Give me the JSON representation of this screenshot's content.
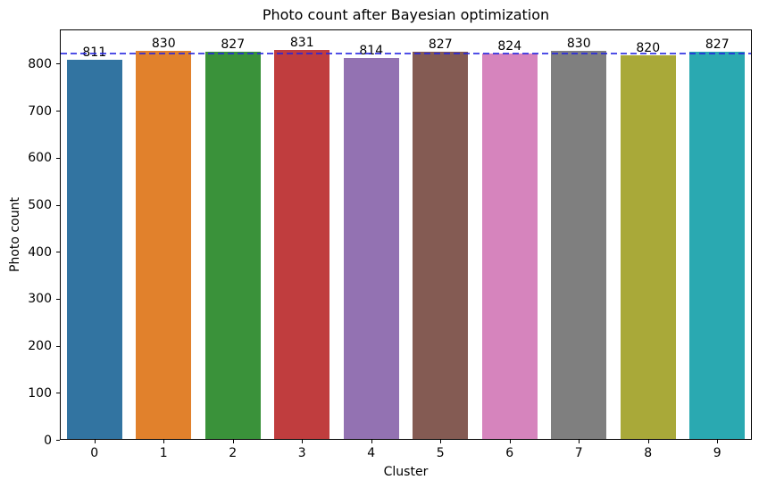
{
  "chart_data": {
    "type": "bar",
    "title": "Photo count after Bayesian optimization",
    "xlabel": "Cluster",
    "ylabel": "Photo count",
    "categories": [
      "0",
      "1",
      "2",
      "3",
      "4",
      "5",
      "6",
      "7",
      "8",
      "9"
    ],
    "values": [
      811,
      830,
      827,
      831,
      814,
      827,
      824,
      830,
      820,
      827
    ],
    "bar_labels": [
      "811",
      "830",
      "827",
      "831",
      "814",
      "827",
      "824",
      "830",
      "820",
      "827"
    ],
    "bar_colors": [
      "#3274a1",
      "#e1812c",
      "#3a923a",
      "#c03d3e",
      "#9372b2",
      "#845b53",
      "#d684bd",
      "#7f7f7f",
      "#a9a939",
      "#2aa9b1"
    ],
    "ylim": [
      0,
      873
    ],
    "yticks": [
      0,
      100,
      200,
      300,
      400,
      500,
      600,
      700,
      800
    ],
    "mean_line": {
      "value": 824.1,
      "color": "35,35,224",
      "opacity": 0.8,
      "style": "dashed"
    },
    "grid": false,
    "legend": false,
    "background": "#ffffff"
  }
}
